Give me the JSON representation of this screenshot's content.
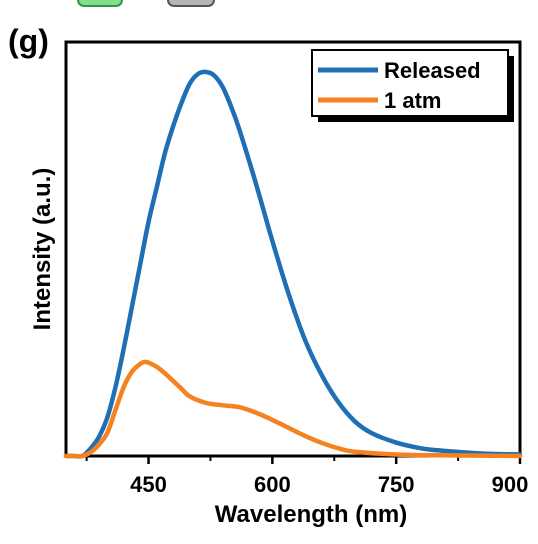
{
  "panel_label": "(g)",
  "colors": {
    "released": "#1f6fb4",
    "atm": "#f58220",
    "axis": "#000000",
    "icon_green": "#7ee08a",
    "icon_gray": "#b5b5b5"
  },
  "chart_data": {
    "type": "line",
    "xlabel": "Wavelength (nm)",
    "ylabel": "Intensity (a.u.)",
    "xlim": [
      350,
      900
    ],
    "ylim": [
      0,
      1.0
    ],
    "x_ticks": [
      "450",
      "600",
      "750",
      "900"
    ],
    "x_tick_values": [
      450,
      600,
      750,
      900
    ],
    "grid": false,
    "y_tick_labels": false,
    "legend_position": "top-right",
    "series": [
      {
        "name": "Released",
        "color": "#1f6fb4",
        "x": [
          350,
          360,
          370,
          380,
          390,
          400,
          410,
          420,
          430,
          440,
          450,
          460,
          470,
          480,
          490,
          500,
          510,
          520,
          530,
          540,
          550,
          560,
          580,
          600,
          620,
          640,
          660,
          680,
          700,
          720,
          750,
          780,
          800,
          850,
          900
        ],
        "y": [
          0.0,
          0.0,
          0.0,
          0.02,
          0.05,
          0.1,
          0.18,
          0.28,
          0.39,
          0.5,
          0.61,
          0.7,
          0.79,
          0.86,
          0.92,
          0.97,
          0.995,
          1.0,
          0.99,
          0.96,
          0.91,
          0.85,
          0.71,
          0.56,
          0.42,
          0.3,
          0.21,
          0.14,
          0.09,
          0.06,
          0.035,
          0.02,
          0.015,
          0.007,
          0.004
        ]
      },
      {
        "name": "1 atm",
        "color": "#f58220",
        "x": [
          350,
          360,
          370,
          380,
          390,
          400,
          410,
          420,
          430,
          440,
          445,
          450,
          460,
          470,
          480,
          490,
          500,
          520,
          540,
          560,
          580,
          600,
          620,
          640,
          660,
          680,
          700,
          750,
          800,
          900
        ],
        "y": [
          0.0,
          0.0,
          0.0,
          0.01,
          0.03,
          0.06,
          0.12,
          0.18,
          0.22,
          0.24,
          0.245,
          0.243,
          0.232,
          0.215,
          0.195,
          0.175,
          0.155,
          0.138,
          0.132,
          0.127,
          0.113,
          0.094,
          0.073,
          0.052,
          0.034,
          0.02,
          0.011,
          0.004,
          0.002,
          0.0
        ]
      }
    ]
  }
}
